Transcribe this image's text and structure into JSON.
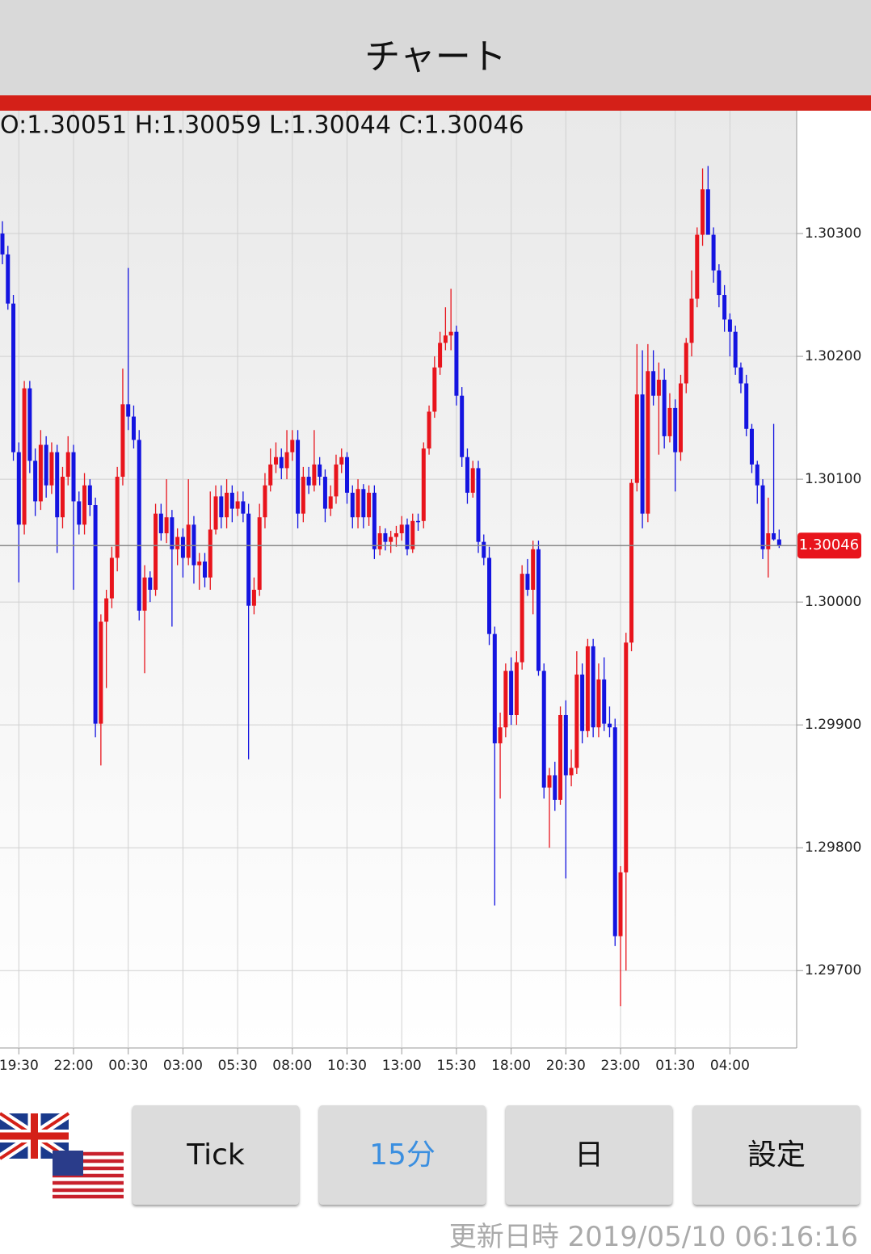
{
  "header": {
    "title": "チャート"
  },
  "chart_data": {
    "type": "candlestick",
    "ohlc_label": "O:1.30051 H:1.30059 L:1.30044 C:1.30046",
    "categories": [
      null,
      null,
      null,
      "19:30",
      null,
      null,
      null,
      null,
      null,
      null,
      null,
      null,
      null,
      "22:00",
      null,
      null,
      null,
      null,
      null,
      null,
      null,
      null,
      null,
      "00:30",
      null,
      null,
      null,
      null,
      null,
      null,
      null,
      null,
      null,
      "03:00",
      null,
      null,
      null,
      null,
      null,
      null,
      null,
      null,
      null,
      "05:30",
      null,
      null,
      null,
      null,
      null,
      null,
      null,
      null,
      null,
      "08:00",
      null,
      null,
      null,
      null,
      null,
      null,
      null,
      null,
      null,
      "10:30",
      null,
      null,
      null,
      null,
      null,
      null,
      null,
      null,
      null,
      "13:00",
      null,
      null,
      null,
      null,
      null,
      null,
      null,
      null,
      null,
      "15:30",
      null,
      null,
      null,
      null,
      null,
      null,
      null,
      null,
      null,
      "18:00",
      null,
      null,
      null,
      null,
      null,
      null,
      null,
      null,
      null,
      "20:30",
      null,
      null,
      null,
      null,
      null,
      null,
      null,
      null,
      null,
      "23:00",
      null,
      null,
      null,
      null,
      null,
      null,
      null,
      null,
      null,
      "01:30",
      null,
      null,
      null,
      null,
      null,
      null,
      null,
      null,
      null,
      "04:00",
      null,
      null,
      null,
      null,
      null,
      null,
      null,
      null,
      null
    ],
    "candles": [
      [
        1.303,
        1.3031,
        1.30275,
        1.30283
      ],
      [
        1.30283,
        1.3029,
        1.30238,
        1.30243
      ],
      [
        1.30243,
        1.3025,
        1.30115,
        1.30122
      ],
      [
        1.30122,
        1.3013,
        1.30016,
        1.30063
      ],
      [
        1.30063,
        1.3018,
        1.30055,
        1.30174
      ],
      [
        1.30174,
        1.3018,
        1.30105,
        1.30115
      ],
      [
        1.30115,
        1.30125,
        1.3007,
        1.30082
      ],
      [
        1.30082,
        1.3014,
        1.30075,
        1.30128
      ],
      [
        1.30128,
        1.30135,
        1.30085,
        1.30095
      ],
      [
        1.30095,
        1.3013,
        1.30088,
        1.30122
      ],
      [
        1.30122,
        1.30128,
        1.3004,
        1.30069
      ],
      [
        1.30069,
        1.3011,
        1.3006,
        1.30102
      ],
      [
        1.30102,
        1.30135,
        1.30095,
        1.30122
      ],
      [
        1.30122,
        1.30128,
        1.3001,
        1.30082
      ],
      [
        1.30082,
        1.3009,
        1.30055,
        1.30063
      ],
      [
        1.30063,
        1.30105,
        1.30055,
        1.30095
      ],
      [
        1.30095,
        1.301,
        1.3007,
        1.30079
      ],
      [
        1.30079,
        1.30085,
        1.2989,
        1.29901
      ],
      [
        1.29901,
        1.2999,
        1.29867,
        1.29984
      ],
      [
        1.29984,
        1.3001,
        1.2993,
        1.30003
      ],
      [
        1.30003,
        1.30045,
        1.29995,
        1.30036
      ],
      [
        1.30036,
        1.3011,
        1.30025,
        1.30102
      ],
      [
        1.30102,
        1.3019,
        1.30095,
        1.30161
      ],
      [
        1.30161,
        1.30272,
        1.3014,
        1.30151
      ],
      [
        1.30151,
        1.3016,
        1.30125,
        1.30132
      ],
      [
        1.30132,
        1.3014,
        1.29985,
        1.29993
      ],
      [
        1.29993,
        1.3003,
        1.29942,
        1.3002
      ],
      [
        1.3002,
        1.30025,
        1.3,
        1.3001
      ],
      [
        1.3001,
        1.3008,
        1.30005,
        1.30072
      ],
      [
        1.30072,
        1.3008,
        1.3005,
        1.30056
      ],
      [
        1.30056,
        1.301,
        1.30048,
        1.30069
      ],
      [
        1.30069,
        1.30075,
        1.2998,
        1.30043
      ],
      [
        1.30043,
        1.3006,
        1.3003,
        1.30053
      ],
      [
        1.30053,
        1.3006,
        1.3002,
        1.30036
      ],
      [
        1.30036,
        1.301,
        1.3003,
        1.30063
      ],
      [
        1.30063,
        1.3007,
        1.30015,
        1.3003
      ],
      [
        1.3003,
        1.3004,
        1.3001,
        1.30033
      ],
      [
        1.30033,
        1.3004,
        1.30012,
        1.3002
      ],
      [
        1.3002,
        1.3009,
        1.3001,
        1.30059
      ],
      [
        1.30059,
        1.30095,
        1.30055,
        1.30086
      ],
      [
        1.30086,
        1.30095,
        1.3006,
        1.30069
      ],
      [
        1.30069,
        1.301,
        1.3006,
        1.30089
      ],
      [
        1.30089,
        1.30095,
        1.30065,
        1.30076
      ],
      [
        1.30076,
        1.3009,
        1.3007,
        1.30082
      ],
      [
        1.30082,
        1.3009,
        1.30065,
        1.30072
      ],
      [
        1.30072,
        1.3008,
        1.29872,
        1.29997
      ],
      [
        1.29997,
        1.3002,
        1.2999,
        1.3001
      ],
      [
        1.3001,
        1.3008,
        1.30005,
        1.30069
      ],
      [
        1.30069,
        1.30105,
        1.3006,
        1.30095
      ],
      [
        1.30095,
        1.30125,
        1.3009,
        1.30112
      ],
      [
        1.30112,
        1.3013,
        1.30105,
        1.30118
      ],
      [
        1.30118,
        1.30125,
        1.301,
        1.30109
      ],
      [
        1.30109,
        1.3014,
        1.301,
        1.30122
      ],
      [
        1.30122,
        1.3014,
        1.30115,
        1.30132
      ],
      [
        1.30132,
        1.3014,
        1.3006,
        1.30072
      ],
      [
        1.30072,
        1.3011,
        1.30065,
        1.30102
      ],
      [
        1.30102,
        1.3011,
        1.30088,
        1.30095
      ],
      [
        1.30095,
        1.3014,
        1.3009,
        1.30112
      ],
      [
        1.30112,
        1.30118,
        1.30095,
        1.30102
      ],
      [
        1.30102,
        1.30108,
        1.30065,
        1.30076
      ],
      [
        1.30076,
        1.30095,
        1.3007,
        1.30086
      ],
      [
        1.30086,
        1.3012,
        1.3008,
        1.30112
      ],
      [
        1.30112,
        1.30125,
        1.30105,
        1.30118
      ],
      [
        1.30118,
        1.30122,
        1.3008,
        1.30089
      ],
      [
        1.30089,
        1.30095,
        1.3006,
        1.30069
      ],
      [
        1.30069,
        1.301,
        1.3006,
        1.30092
      ],
      [
        1.30092,
        1.30096,
        1.3006,
        1.30069
      ],
      [
        1.30069,
        1.30095,
        1.30062,
        1.30089
      ],
      [
        1.30089,
        1.30095,
        1.30035,
        1.30043
      ],
      [
        1.30043,
        1.30062,
        1.30038,
        1.30056
      ],
      [
        1.30056,
        1.3006,
        1.30042,
        1.30049
      ],
      [
        1.30049,
        1.30058,
        1.3004,
        1.30053
      ],
      [
        1.30053,
        1.30062,
        1.30045,
        1.30056
      ],
      [
        1.30056,
        1.3007,
        1.3005,
        1.30063
      ],
      [
        1.30063,
        1.30068,
        1.30038,
        1.30043
      ],
      [
        1.30043,
        1.30072,
        1.3004,
        1.30066
      ],
      [
        1.30066,
        1.30072,
        1.30058,
        1.30066
      ],
      [
        1.30066,
        1.3013,
        1.3006,
        1.30125
      ],
      [
        1.30125,
        1.3016,
        1.3012,
        1.30155
      ],
      [
        1.30155,
        1.302,
        1.3015,
        1.30191
      ],
      [
        1.30191,
        1.3022,
        1.30185,
        1.30211
      ],
      [
        1.30211,
        1.3024,
        1.30205,
        1.30217
      ],
      [
        1.30217,
        1.30255,
        1.30205,
        1.3022
      ],
      [
        1.3022,
        1.30225,
        1.3016,
        1.30168
      ],
      [
        1.30168,
        1.30175,
        1.3011,
        1.30118
      ],
      [
        1.30118,
        1.30125,
        1.3008,
        1.30089
      ],
      [
        1.30089,
        1.30115,
        1.30085,
        1.30109
      ],
      [
        1.30109,
        1.30115,
        1.3004,
        1.30049
      ],
      [
        1.30049,
        1.30055,
        1.3003,
        1.30036
      ],
      [
        1.30036,
        1.30045,
        1.29965,
        1.29974
      ],
      [
        1.29974,
        1.2998,
        1.29753,
        1.29885
      ],
      [
        1.29885,
        1.2991,
        1.2984,
        1.29898
      ],
      [
        1.29898,
        1.2995,
        1.2989,
        1.29944
      ],
      [
        1.29944,
        1.29955,
        1.299,
        1.29908
      ],
      [
        1.29908,
        1.2996,
        1.299,
        1.29951
      ],
      [
        1.29951,
        1.3003,
        1.29945,
        1.30023
      ],
      [
        1.30023,
        1.30035,
        1.30005,
        1.3001
      ],
      [
        1.3001,
        1.3005,
        1.2999,
        1.30043
      ],
      [
        1.30043,
        1.3005,
        1.2994,
        1.29944
      ],
      [
        1.29944,
        1.2995,
        1.2984,
        1.29849
      ],
      [
        1.29849,
        1.29865,
        1.298,
        1.29859
      ],
      [
        1.29859,
        1.2987,
        1.2983,
        1.29839
      ],
      [
        1.29839,
        1.29915,
        1.29835,
        1.29908
      ],
      [
        1.29908,
        1.2992,
        1.29775,
        1.29859
      ],
      [
        1.29859,
        1.2988,
        1.2985,
        1.29865
      ],
      [
        1.29865,
        1.2996,
        1.2986,
        1.29941
      ],
      [
        1.29941,
        1.2995,
        1.29885,
        1.29895
      ],
      [
        1.29895,
        1.2997,
        1.2989,
        1.29964
      ],
      [
        1.29964,
        1.2997,
        1.2989,
        1.29898
      ],
      [
        1.29898,
        1.2995,
        1.2989,
        1.29937
      ],
      [
        1.29937,
        1.29955,
        1.29895,
        1.29901
      ],
      [
        1.29901,
        1.29915,
        1.2989,
        1.29898
      ],
      [
        1.29898,
        1.29905,
        1.2972,
        1.29728
      ],
      [
        1.29728,
        1.29785,
        1.29671,
        1.2978
      ],
      [
        1.2978,
        1.29975,
        1.297,
        1.29967
      ],
      [
        1.29967,
        1.301,
        1.2996,
        1.30097
      ],
      [
        1.30097,
        1.3021,
        1.3009,
        1.30169
      ],
      [
        1.30169,
        1.30205,
        1.3006,
        1.30072
      ],
      [
        1.30072,
        1.3021,
        1.30065,
        1.30188
      ],
      [
        1.30188,
        1.30205,
        1.3016,
        1.30168
      ],
      [
        1.30168,
        1.30195,
        1.3012,
        1.30181
      ],
      [
        1.30181,
        1.3019,
        1.30125,
        1.30135
      ],
      [
        1.30135,
        1.3017,
        1.3013,
        1.30158
      ],
      [
        1.30158,
        1.30165,
        1.3009,
        1.30122
      ],
      [
        1.30122,
        1.30185,
        1.30115,
        1.30178
      ],
      [
        1.30178,
        1.30215,
        1.3017,
        1.30211
      ],
      [
        1.30211,
        1.3027,
        1.302,
        1.30247
      ],
      [
        1.30247,
        1.30305,
        1.3024,
        1.30299
      ],
      [
        1.30299,
        1.30353,
        1.3029,
        1.30336
      ],
      [
        1.30336,
        1.30355,
        1.303,
        1.30299
      ],
      [
        1.30299,
        1.30305,
        1.3026,
        1.3027
      ],
      [
        1.3027,
        1.30275,
        1.3024,
        1.3025
      ],
      [
        1.3025,
        1.30258,
        1.3022,
        1.3023
      ],
      [
        1.3023,
        1.30235,
        1.302,
        1.3022
      ],
      [
        1.3022,
        1.30225,
        1.30185,
        1.30191
      ],
      [
        1.30191,
        1.30195,
        1.3017,
        1.30178
      ],
      [
        1.30178,
        1.30185,
        1.30135,
        1.30141
      ],
      [
        1.30141,
        1.30145,
        1.30105,
        1.30112
      ],
      [
        1.30112,
        1.30115,
        1.3008,
        1.30095
      ],
      [
        1.30095,
        1.301,
        1.30035,
        1.30043
      ],
      [
        1.30043,
        1.30085,
        1.3002,
        1.30056
      ],
      [
        1.30056,
        1.30145,
        1.3005,
        1.30051
      ],
      [
        1.30051,
        1.30059,
        1.30044,
        1.30046
      ]
    ],
    "up_color": "#e8141c",
    "down_color": "#1414e0",
    "ylim": [
      1.29637,
      1.304
    ],
    "yticks": [
      {
        "value": 1.297,
        "label": "1.29700"
      },
      {
        "value": 1.298,
        "label": "1.29800"
      },
      {
        "value": 1.299,
        "label": "1.29900"
      },
      {
        "value": 1.3,
        "label": "1.30000"
      },
      {
        "value": 1.301,
        "label": "1.30100"
      },
      {
        "value": 1.302,
        "label": "1.30200"
      },
      {
        "value": 1.303,
        "label": "1.30300"
      }
    ],
    "grid": true
  },
  "buttons": [
    "Tick",
    "15分",
    "日",
    "設定"
  ],
  "footer": {
    "label": "更新日時",
    "timestamp": "2019/05/10 06:16:16"
  }
}
